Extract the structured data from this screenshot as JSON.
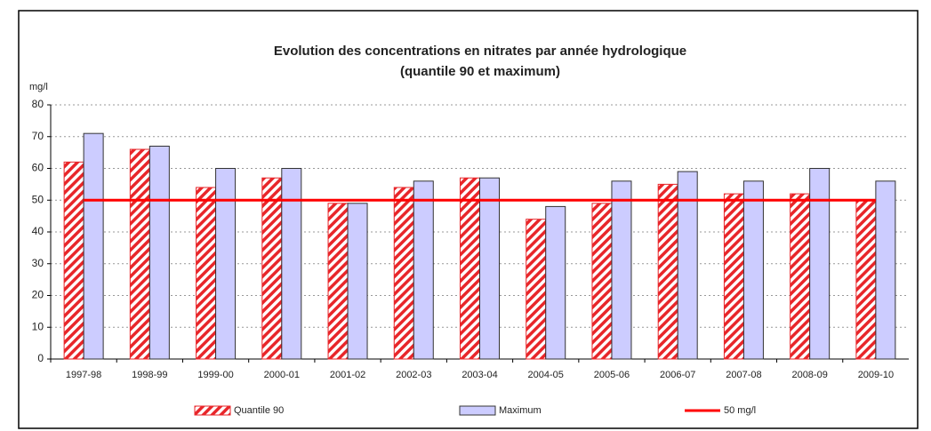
{
  "chart_data": {
    "type": "bar",
    "title": "Evolution des concentrations en nitrates par année hydrologique",
    "subtitle": "(quantile 90 et maximum)",
    "y_label": "mg/l",
    "categories": [
      "1997-98",
      "1998-99",
      "1999-00",
      "2000-01",
      "2001-02",
      "2002-03",
      "2003-04",
      "2004-05",
      "2005-06",
      "2006-07",
      "2007-08",
      "2008-09",
      "2009-10"
    ],
    "series": [
      {
        "name": "Quantile 90",
        "color": "#e8262a",
        "type": "bar",
        "values": [
          62,
          66,
          54,
          57,
          49,
          54,
          57,
          44,
          49,
          55,
          52,
          52,
          50
        ]
      },
      {
        "name": "Maximum",
        "color": "#ccccff",
        "type": "bar",
        "values": [
          71,
          67,
          60,
          60,
          49,
          56,
          57,
          48,
          56,
          59,
          56,
          60,
          56
        ]
      },
      {
        "name": "50 mg/l",
        "color": "#ff0000",
        "type": "line",
        "values": [
          50,
          50,
          50,
          50,
          50,
          50,
          50,
          50,
          50,
          50,
          50,
          50,
          50
        ]
      }
    ],
    "ylim": [
      0,
      80
    ],
    "yticks": [
      0,
      10,
      20,
      30,
      40,
      50,
      60,
      70,
      80
    ],
    "grid": true,
    "legend": "bottom"
  }
}
